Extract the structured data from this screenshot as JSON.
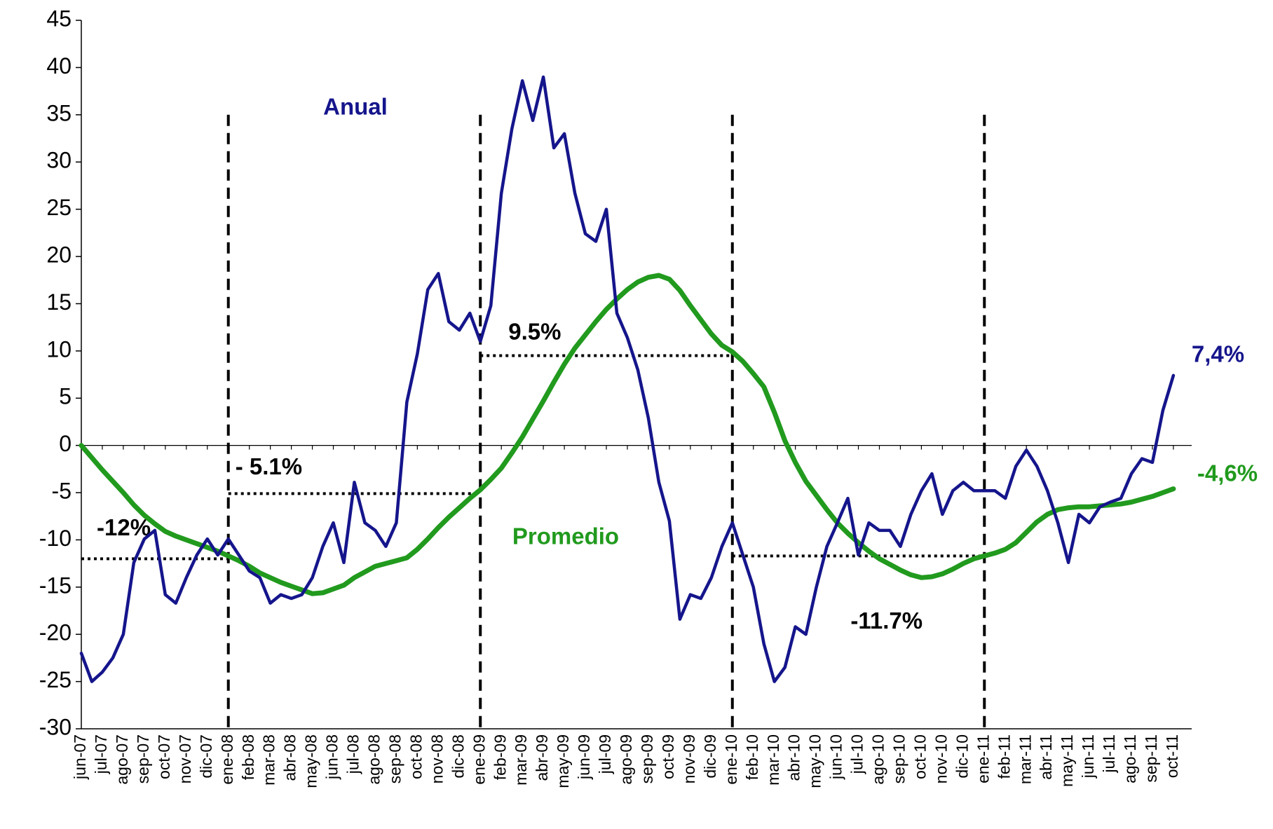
{
  "chart_data": {
    "type": "line",
    "categories": [
      "jun-07",
      null,
      "jul-07",
      null,
      "ago-07",
      null,
      "sep-07",
      null,
      "oct-07",
      null,
      "nov-07",
      null,
      "dic-07",
      null,
      "ene-08",
      null,
      "feb-08",
      null,
      "mar-08",
      null,
      "abr-08",
      null,
      "may-08",
      null,
      "jun-08",
      null,
      "jul-08",
      null,
      "ago-08",
      null,
      "sep-08",
      null,
      "oct-08",
      null,
      "nov-08",
      null,
      "dic-08",
      null,
      "ene-09",
      null,
      "feb-09",
      null,
      "mar-09",
      null,
      "abr-09",
      null,
      "may-09",
      null,
      "jun-09",
      null,
      "jul-09",
      null,
      "ago-09",
      null,
      "sep-09",
      null,
      "oct-09",
      null,
      "nov-09",
      null,
      "dic-09",
      null,
      "ene-10",
      null,
      "feb-10",
      null,
      "mar-10",
      null,
      "abr-10",
      null,
      "may-10",
      null,
      "jun-10",
      null,
      "jul-10",
      null,
      "ago-10",
      null,
      "sep-10",
      null,
      "oct-10",
      null,
      "nov-10",
      null,
      "dic-10",
      null,
      "ene-11",
      null,
      "feb-11",
      null,
      "mar-11",
      null,
      "abr-11",
      null,
      "may-11",
      null,
      "jun-11",
      null,
      "jul-11",
      null,
      "ago-11",
      null,
      "sep-11",
      null,
      "oct-11"
    ],
    "series": [
      {
        "name": "Anual",
        "color": "#15158c",
        "last_label": "7,4%",
        "values": [
          -22,
          -25,
          -24,
          -22.5,
          -20,
          -12.4,
          -9.9,
          -9,
          -15.8,
          -16.7,
          -14,
          -11.6,
          -9.9,
          -11.6,
          -9.9,
          -11.6,
          -13.3,
          -14,
          -16.7,
          -15.8,
          -16.2,
          -15.8,
          -14,
          -10.7,
          -8.2,
          -12.4,
          -3.9,
          -8.2,
          -9,
          -10.7,
          -8.2,
          4.6,
          9.7,
          16.5,
          18.2,
          13.1,
          12.2,
          14,
          11,
          14.8,
          26.7,
          33.5,
          38.6,
          34.4,
          39,
          31.5,
          33,
          26.7,
          22.4,
          21.6,
          25,
          14,
          11.4,
          8,
          2.9,
          -3.9,
          -8,
          -18.4,
          -15.8,
          -16.2,
          -14,
          -10.7,
          -8.2,
          -11.6,
          -15,
          -21,
          -25,
          -23.5,
          -19.2,
          -20,
          -15,
          -10.7,
          -8.2,
          -5.6,
          -11.6,
          -8.2,
          -9,
          -9,
          -10.7,
          -7.3,
          -4.8,
          -3,
          -7.3,
          -4.8,
          -3.9,
          -4.8,
          -4.8,
          -4.8,
          -5.6,
          -2.2,
          -0.5,
          -2.2,
          -4.8,
          -8.2,
          -12.4,
          -7.3,
          -8.2,
          -6.5,
          -6,
          -5.6,
          -3,
          -1.4,
          -1.8,
          3.7,
          7.4
        ]
      },
      {
        "name": "Promedio",
        "color": "#219a1e",
        "last_label": "-4,6%",
        "values": [
          0,
          -1.3,
          -2.6,
          -3.8,
          -5,
          -6.3,
          -7.4,
          -8.3,
          -9.1,
          -9.6,
          -10,
          -10.4,
          -10.8,
          -11.2,
          -11.7,
          -12.2,
          -12.8,
          -13.5,
          -14,
          -14.5,
          -14.9,
          -15.3,
          -15.7,
          -15.6,
          -15.2,
          -14.8,
          -14,
          -13.4,
          -12.8,
          -12.5,
          -12.2,
          -11.9,
          -11,
          -9.9,
          -8.7,
          -7.6,
          -6.6,
          -5.6,
          -4.7,
          -3.6,
          -2.4,
          -0.8,
          0.9,
          2.8,
          4.7,
          6.7,
          8.6,
          10.3,
          11.7,
          13.1,
          14.4,
          15.5,
          16.5,
          17.3,
          17.8,
          18,
          17.6,
          16.4,
          14.8,
          13.3,
          11.8,
          10.6,
          9.9,
          8.9,
          7.6,
          6.2,
          3.5,
          0.5,
          -1.8,
          -3.8,
          -5.3,
          -6.8,
          -8.2,
          -9.3,
          -10.3,
          -11.2,
          -12,
          -12.6,
          -13.2,
          -13.7,
          -14,
          -13.9,
          -13.6,
          -13.1,
          -12.5,
          -12,
          -11.7,
          -11.4,
          -11,
          -10.3,
          -9.2,
          -8.1,
          -7.3,
          -6.8,
          -6.6,
          -6.5,
          -6.5,
          -6.4,
          -6.3,
          -6.2,
          -6,
          -5.7,
          -5.4,
          -5,
          -4.6
        ]
      }
    ],
    "periods": [
      {
        "label": "-12%",
        "value": -12,
        "start": "jun-07",
        "end": "ene-08"
      },
      {
        "label": "- 5.1%",
        "value": -5.1,
        "start": "ene-08",
        "end": "ene-09"
      },
      {
        "label": "9.5%",
        "value": 9.5,
        "start": "ene-09",
        "end": "ene-10"
      },
      {
        "label": "-11.7%",
        "value": -11.7,
        "start": "ene-10",
        "end": "ene-11"
      }
    ],
    "ylim": [
      -30,
      45
    ],
    "yticks": [
      -30,
      -25,
      -20,
      -15,
      -10,
      -5,
      0,
      5,
      10,
      15,
      20,
      25,
      30,
      35,
      40,
      45
    ],
    "grid": false
  }
}
